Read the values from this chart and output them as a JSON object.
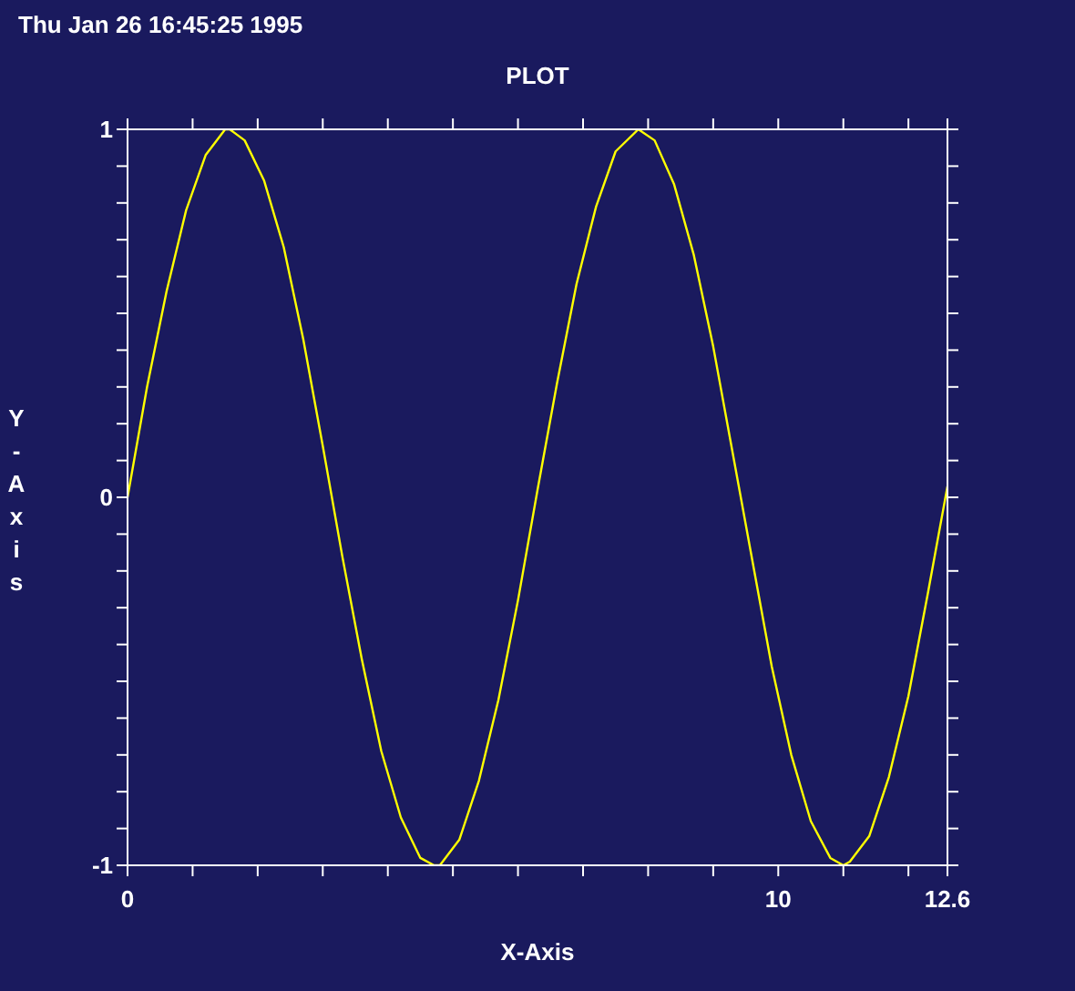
{
  "chart_data": {
    "type": "line",
    "title": "PLOT",
    "xlabel": "X-Axis",
    "ylabel": "Y-Axis",
    "annotations": [
      "Thu Jan 26 16:45:25 1995"
    ],
    "x": [
      0,
      0.3,
      0.6,
      0.9,
      1.2,
      1.5,
      1.57,
      1.8,
      2.1,
      2.4,
      2.7,
      3.0,
      3.3,
      3.6,
      3.9,
      4.2,
      4.5,
      4.71,
      4.8,
      5.1,
      5.4,
      5.7,
      6.0,
      6.3,
      6.6,
      6.9,
      7.2,
      7.5,
      7.85,
      8.1,
      8.4,
      8.7,
      9.0,
      9.3,
      9.6,
      9.9,
      10.2,
      10.5,
      10.8,
      11.0,
      11.1,
      11.4,
      11.7,
      12.0,
      12.3,
      12.6
    ],
    "series": [
      {
        "color": "#ffff00",
        "values": [
          0,
          0.3,
          0.56,
          0.78,
          0.93,
          1.0,
          1.0,
          0.97,
          0.86,
          0.68,
          0.43,
          0.14,
          -0.16,
          -0.44,
          -0.69,
          -0.87,
          -0.98,
          -1.0,
          -1.0,
          -0.93,
          -0.77,
          -0.55,
          -0.28,
          0.02,
          0.31,
          0.58,
          0.79,
          0.94,
          1.0,
          0.97,
          0.85,
          0.66,
          0.41,
          0.12,
          -0.17,
          -0.46,
          -0.7,
          -0.88,
          -0.98,
          -1.0,
          -0.99,
          -0.92,
          -0.76,
          -0.54,
          -0.26,
          0.03
        ]
      }
    ],
    "xlim": [
      0,
      12.6
    ],
    "xticks": [
      0,
      {
        "value": 1,
        "label": null
      },
      {
        "value": 2,
        "label": null
      },
      {
        "value": 3,
        "label": null
      },
      {
        "value": 4,
        "label": null
      },
      {
        "value": 5,
        "label": null
      },
      {
        "value": 6,
        "label": null
      },
      {
        "value": 7,
        "label": null
      },
      {
        "value": 8,
        "label": null
      },
      {
        "value": 9,
        "label": null
      },
      10,
      {
        "value": 11,
        "label": null
      },
      {
        "value": 12,
        "label": null
      },
      12.6
    ],
    "ylim": [
      -1,
      1
    ],
    "yticks": [
      -1,
      {
        "value": -0.9,
        "label": null
      },
      {
        "value": -0.8,
        "label": null
      },
      {
        "value": -0.7,
        "label": null
      },
      {
        "value": -0.6,
        "label": null
      },
      {
        "value": -0.5,
        "label": null
      },
      {
        "value": -0.4,
        "label": null
      },
      {
        "value": -0.3,
        "label": null
      },
      {
        "value": -0.2,
        "label": null
      },
      {
        "value": -0.1,
        "label": null
      },
      0,
      {
        "value": 0.1,
        "label": null
      },
      {
        "value": 0.2,
        "label": null
      },
      {
        "value": 0.3,
        "label": null
      },
      {
        "value": 0.4,
        "label": null
      },
      {
        "value": 0.5,
        "label": null
      },
      {
        "value": 0.6,
        "label": null
      },
      {
        "value": 0.7,
        "label": null
      },
      {
        "value": 0.8,
        "label": null
      },
      {
        "value": 0.9,
        "label": null
      },
      1
    ],
    "marker": "none",
    "line_style": "solid"
  }
}
